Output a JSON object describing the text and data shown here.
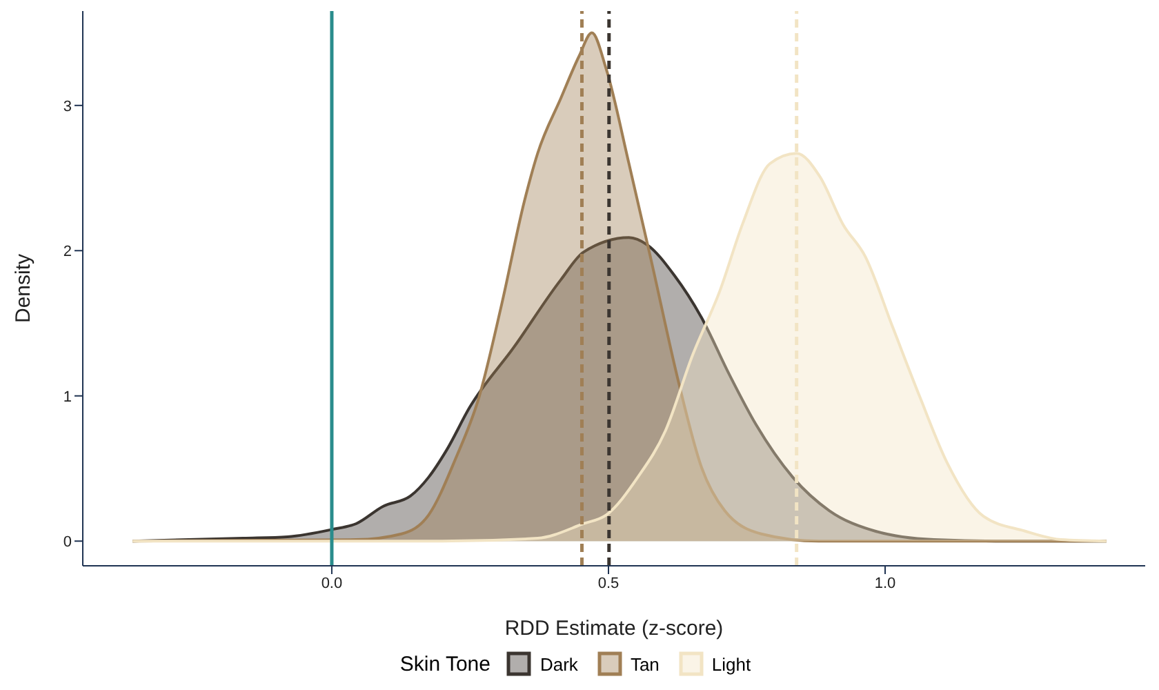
{
  "chart_data": {
    "type": "area",
    "xlabel": "RDD Estimate (z-score)",
    "ylabel": "Density",
    "legend_title": "Skin Tone",
    "legend": "bottom",
    "grid": false,
    "xlim": [
      -0.45,
      1.47
    ],
    "ylim": [
      -0.17,
      3.65
    ],
    "xticks": [
      {
        "value": 0,
        "label": "0.0"
      },
      {
        "value": 0.5,
        "label": "0.5"
      },
      {
        "value": 1,
        "label": "1.0"
      }
    ],
    "yticks": [
      0,
      1,
      2,
      3
    ],
    "series": [
      {
        "name": "Dark",
        "color": "#3b3530",
        "x": [
          -0.36,
          -0.16,
          -0.08,
          0,
          0.044,
          0.093,
          0.142,
          0.175,
          0.208,
          0.249,
          0.33,
          0.414,
          0.455,
          0.537,
          0.57,
          0.619,
          0.668,
          0.718,
          0.767,
          0.833,
          0.899,
          0.981,
          1.088,
          1.2,
          1.4
        ],
        "values": [
          0,
          0.02,
          0.03,
          0.08,
          0.12,
          0.24,
          0.31,
          0.44,
          0.63,
          0.92,
          1.34,
          1.8,
          1.99,
          2.09,
          2.04,
          1.83,
          1.54,
          1.15,
          0.8,
          0.44,
          0.21,
          0.07,
          0.01,
          0,
          0
        ]
      },
      {
        "name": "Tan",
        "color": "#a07f55",
        "x": [
          -0.36,
          0.044,
          0.126,
          0.175,
          0.224,
          0.266,
          0.307,
          0.348,
          0.372,
          0.414,
          0.447,
          0.47,
          0.496,
          0.537,
          0.578,
          0.627,
          0.668,
          0.71,
          0.776,
          0.88,
          1.4
        ],
        "values": [
          0,
          0.01,
          0.05,
          0.18,
          0.57,
          0.99,
          1.63,
          2.34,
          2.67,
          3.05,
          3.34,
          3.5,
          3.25,
          2.6,
          1.92,
          1.09,
          0.51,
          0.21,
          0.05,
          0,
          0
        ]
      },
      {
        "name": "Light",
        "color": "#f2e4c4",
        "x": [
          -0.36,
          0.2,
          0.372,
          0.455,
          0.496,
          0.553,
          0.603,
          0.652,
          0.702,
          0.742,
          0.792,
          0.84,
          0.882,
          0.924,
          0.964,
          1.014,
          1.063,
          1.112,
          1.178,
          1.252,
          1.318,
          1.4
        ],
        "values": [
          0,
          0,
          0.02,
          0.12,
          0.18,
          0.44,
          0.76,
          1.28,
          1.73,
          2.18,
          2.6,
          2.67,
          2.51,
          2.18,
          1.96,
          1.47,
          0.99,
          0.54,
          0.17,
          0.07,
          0.01,
          0
        ]
      }
    ],
    "ref_lines": [
      {
        "axis": "x",
        "value": 0,
        "color": "#2a8c8c",
        "line_style": "solid"
      },
      {
        "axis": "x",
        "value": 0.452,
        "color": "#a07f55",
        "line_style": "dashed"
      },
      {
        "axis": "x",
        "value": 0.501,
        "color": "#3b3530",
        "line_style": "dashed"
      },
      {
        "axis": "x",
        "value": 0.84,
        "color": "#f2e4c4",
        "line_style": "dashed"
      }
    ]
  }
}
